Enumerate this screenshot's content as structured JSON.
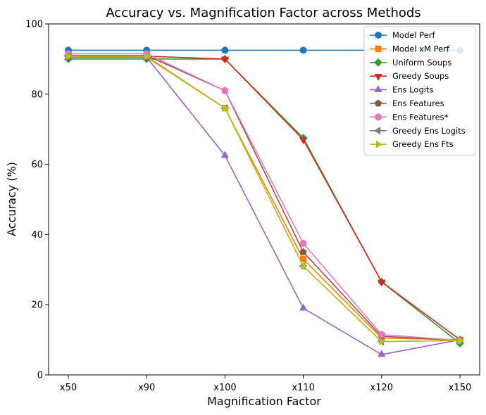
{
  "chart_data": {
    "type": "line",
    "title": "Accuracy vs. Magnification Factor across Methods",
    "xlabel": "Magnification Factor",
    "ylabel": "Accuracy (%)",
    "categories": [
      "x50",
      "x90",
      "x100",
      "x110",
      "x120",
      "x150"
    ],
    "ylim": [
      0,
      100
    ],
    "yticks": [
      0,
      20,
      40,
      60,
      80,
      100
    ],
    "grid": false,
    "legend_position": "top-right",
    "series": [
      {
        "name": "Model Perf",
        "color": "#1f77b4",
        "marker": "circle",
        "values": [
          92.5,
          92.5,
          92.5,
          92.5,
          92.5,
          92.5
        ]
      },
      {
        "name": "Model xM Perf",
        "color": "#ff7f0e",
        "marker": "square",
        "values": [
          90.5,
          90.5,
          76.0,
          33.0,
          10.5,
          10.0
        ]
      },
      {
        "name": "Uniform Soups",
        "color": "#2ca02c",
        "marker": "diamond",
        "values": [
          90.0,
          90.0,
          90.0,
          67.5,
          26.5,
          9.0
        ]
      },
      {
        "name": "Greedy Soups",
        "color": "#d62728",
        "marker": "triangle-down",
        "values": [
          90.5,
          90.8,
          90.0,
          67.0,
          26.5,
          10.0
        ]
      },
      {
        "name": "Ens Logits",
        "color": "#9467bd",
        "marker": "triangle-up",
        "values": [
          90.5,
          90.5,
          62.5,
          19.0,
          5.8,
          10.0
        ]
      },
      {
        "name": "Ens Features",
        "color": "#8c564b",
        "marker": "pentagon",
        "values": [
          91.0,
          91.0,
          81.0,
          35.0,
          11.0,
          9.8
        ]
      },
      {
        "name": "Ens Features*",
        "color": "#e377c2",
        "marker": "hexagon",
        "values": [
          91.5,
          91.5,
          81.0,
          37.5,
          11.5,
          9.8
        ]
      },
      {
        "name": "Greedy Ens Logits",
        "color": "#7f7f7f",
        "marker": "triangle-left",
        "values": [
          90.8,
          90.8,
          76.0,
          31.0,
          9.5,
          9.8
        ]
      },
      {
        "name": "Greedy Ens Fts",
        "color": "#bcbd22",
        "marker": "triangle-right",
        "values": [
          90.8,
          90.8,
          76.0,
          31.0,
          9.5,
          9.8
        ]
      }
    ]
  }
}
